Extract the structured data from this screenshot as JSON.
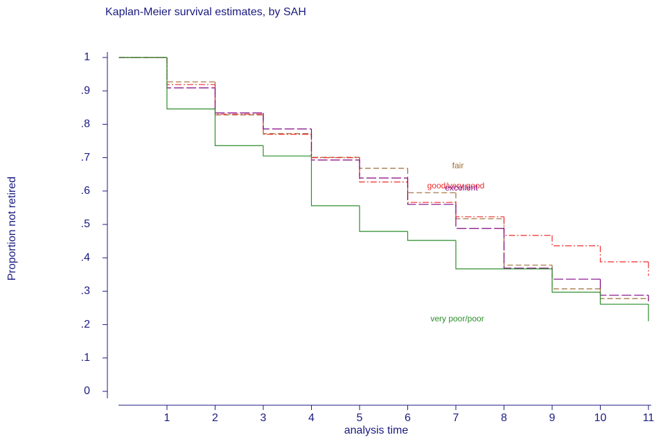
{
  "chart_data": {
    "type": "step",
    "title": "Kaplan-Meier survival estimates, by SAH",
    "x_label": "analysis time",
    "y_label": "Proportion not retired",
    "x": [
      0,
      1,
      2,
      3,
      4,
      5,
      6,
      7,
      8,
      9,
      10,
      11
    ],
    "series": [
      {
        "name": "fair",
        "color": "#9c6a30",
        "values": [
          1,
          0.927,
          0.828,
          0.772,
          0.701,
          0.668,
          0.595,
          0.517,
          0.378,
          0.307,
          0.278,
          0.27
        ]
      },
      {
        "name": "good/very good",
        "color": "#f02828",
        "values": [
          1,
          0.919,
          0.83,
          0.77,
          0.7,
          0.627,
          0.566,
          0.523,
          0.467,
          0.436,
          0.388,
          0.346
        ]
      },
      {
        "name": "excellent",
        "color": "#800080",
        "values": [
          1,
          0.909,
          0.834,
          0.786,
          0.693,
          0.639,
          0.56,
          0.488,
          0.369,
          0.336,
          0.288,
          0.27
        ]
      },
      {
        "name": "very poor/poor",
        "color": "#2a8c2a",
        "values": [
          1,
          0.846,
          0.736,
          0.705,
          0.556,
          0.479,
          0.452,
          0.367,
          0.367,
          0.297,
          0.261,
          0.21
        ]
      }
    ],
    "xlim": [
      0,
      11
    ],
    "xticks": [
      1,
      2,
      3,
      4,
      5,
      6,
      7,
      8,
      9,
      10,
      11
    ],
    "ylim": [
      0,
      1
    ],
    "yticks": [
      {
        "value": 0,
        "label": "0"
      },
      {
        "value": 0.1,
        "label": ".1"
      },
      {
        "value": 0.2,
        "label": ".2"
      },
      {
        "value": 0.3,
        "label": ".3"
      },
      {
        "value": 0.4,
        "label": ".4"
      },
      {
        "value": 0.5,
        "label": ".5"
      },
      {
        "value": 0.6,
        "label": ".6"
      },
      {
        "value": 0.7,
        "label": ".7"
      },
      {
        "value": 0.8,
        "label": ".8"
      },
      {
        "value": 0.9,
        "label": ".9"
      },
      {
        "value": 1,
        "label": "1"
      }
    ]
  }
}
